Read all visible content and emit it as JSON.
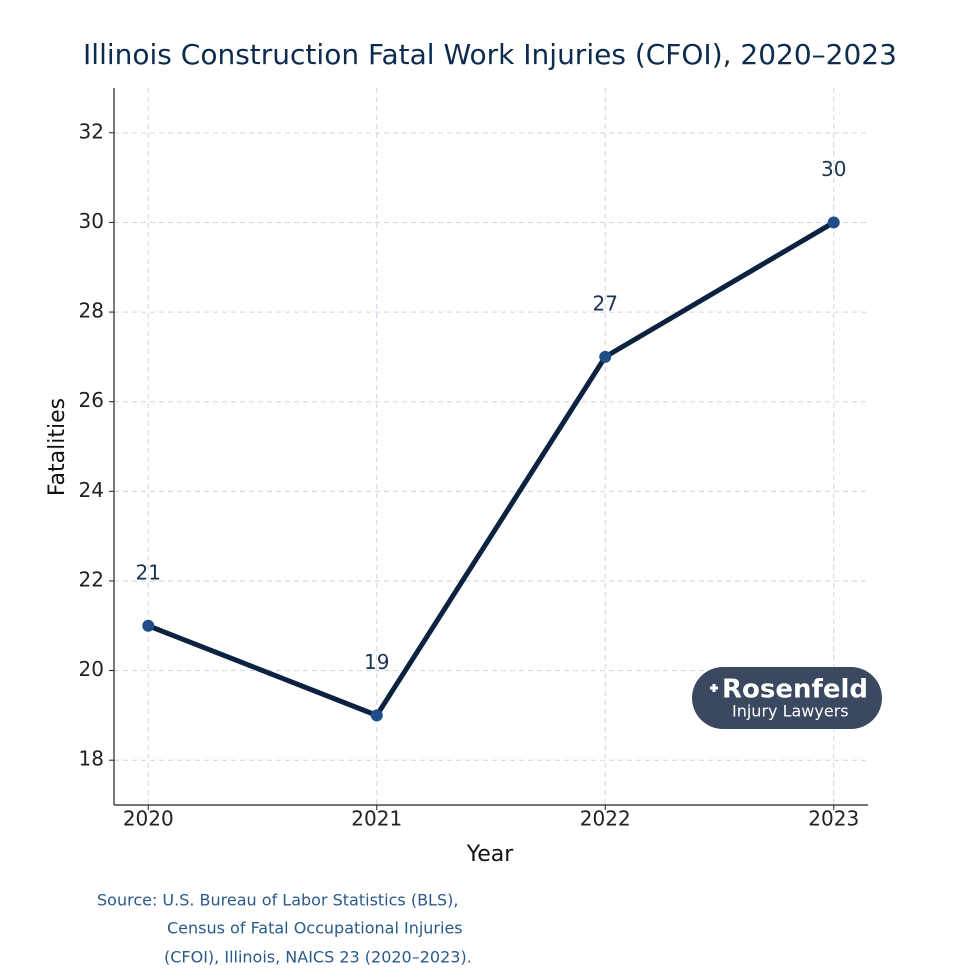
{
  "chart_data": {
    "type": "line",
    "title": "Illinois Construction Fatal Work Injuries (CFOI), 2020–2023",
    "x_label": "Year",
    "y_label": "Fatalities",
    "x": [
      2020,
      2021,
      2022,
      2023
    ],
    "values": [
      21,
      19,
      27,
      30
    ],
    "color": "#0b2240",
    "marker_color": "#1f4e89",
    "xlim": [
      2019.85,
      2023.15
    ],
    "xticks": [
      2020,
      2021,
      2022,
      2023
    ],
    "ylim": [
      17,
      33
    ],
    "yticks": [
      18,
      20,
      22,
      24,
      26,
      28,
      30,
      32
    ],
    "grid": true,
    "logo": {
      "name": "Rosenfeld",
      "tagline": "Injury Lawyers"
    },
    "source": [
      "Source: U.S. Bureau of Labor Statistics (BLS),",
      "Census of Fatal Occupational Injuries",
      "(CFOI), Illinois, NAICS 23 (2020–2023)."
    ]
  }
}
